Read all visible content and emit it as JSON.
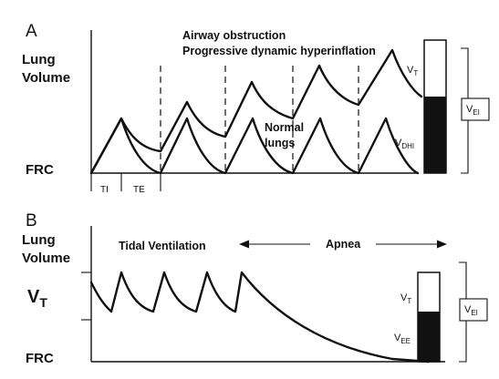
{
  "panel_a": {
    "letter": "A",
    "y_label_line1": "Lung",
    "y_label_line2": "Volume",
    "frc_label": "FRC",
    "title_line1": "Airway obstruction",
    "title_line2": "Progressive dynamic hyperinflation",
    "normal_line1": "Normal",
    "normal_line2": "lungs",
    "ti_label": "TI",
    "te_label": "TE",
    "vt_label": "V",
    "vt_sub": "T",
    "vdhi_label": "V",
    "vdhi_sub": "DHI",
    "vei_label": "V",
    "vei_sub": "EI"
  },
  "panel_b": {
    "letter": "B",
    "y_label_line1": "Lung",
    "y_label_line2": "Volume",
    "frc_label": "FRC",
    "vt_axis_label": "V",
    "vt_axis_sub": "T",
    "tidal_label": "Tidal Ventilation",
    "apnea_label": "Apnea",
    "vt_label": "V",
    "vt_sub": "T",
    "vee_label": "V",
    "vee_sub": "EE",
    "vei_label": "V",
    "vei_sub": "EI"
  }
}
